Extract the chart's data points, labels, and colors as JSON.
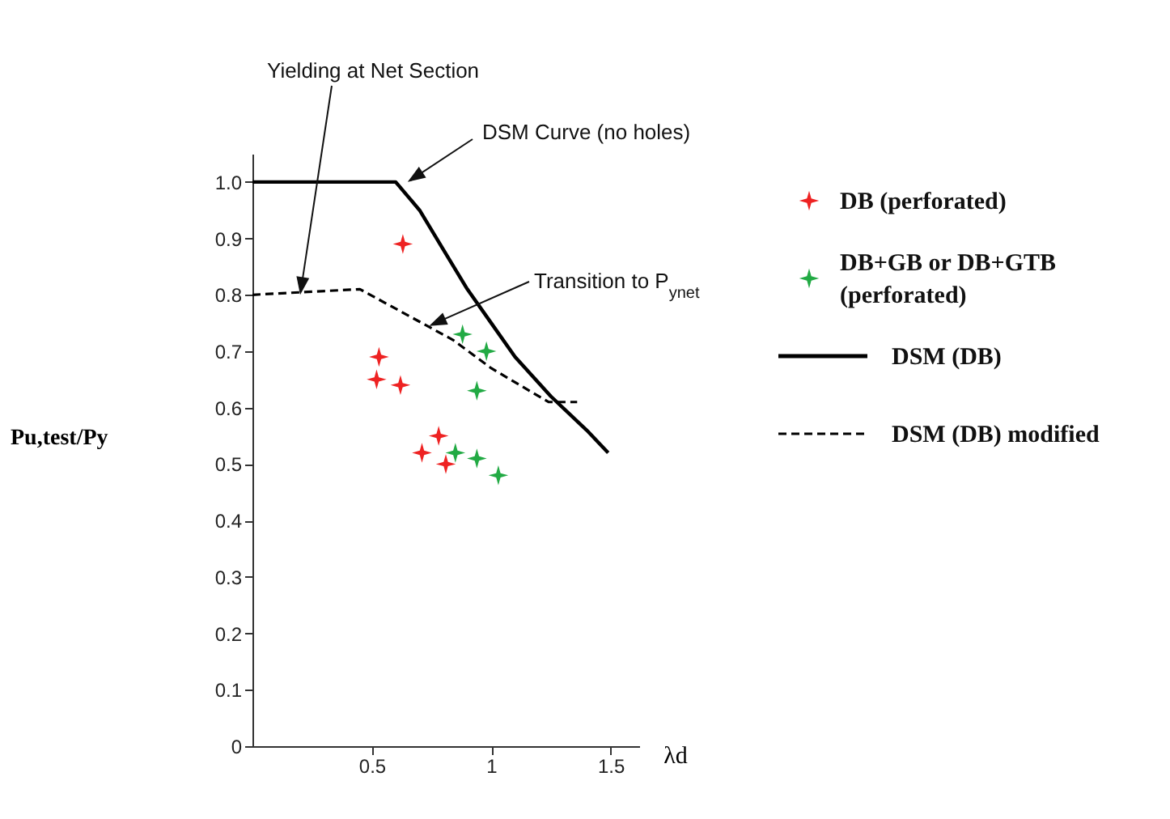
{
  "chart_data": {
    "type": "scatter",
    "xlabel": "λd",
    "ylabel": "Pu,test/Py",
    "xlim": [
      0,
      1.62
    ],
    "xticks": [
      0.5,
      1,
      1.5
    ],
    "ylim": [
      0,
      1.05
    ],
    "yticks": [
      0,
      0.1,
      0.2,
      0.3,
      0.4,
      0.5,
      0.6,
      0.7,
      0.8,
      0.9,
      {
        "value": 1,
        "label": "1.0"
      }
    ],
    "grid": false,
    "legend": "right",
    "series": [
      {
        "name": "DB (perforated)",
        "marker": "star",
        "color": "#ee2222",
        "x": [
          0.53,
          0.63,
          0.52,
          0.62,
          0.71,
          0.78,
          0.81
        ],
        "values": [
          0.69,
          0.89,
          0.65,
          0.64,
          0.52,
          0.55,
          0.5
        ]
      },
      {
        "name": "DB+GB or DB+GTB (perforated)",
        "marker": "star",
        "color": "#22aa44",
        "x": [
          0.88,
          0.98,
          0.94,
          0.85,
          0.94,
          1.03
        ],
        "values": [
          0.73,
          0.7,
          0.63,
          0.52,
          0.51,
          0.48
        ]
      },
      {
        "name": "DSM (DB)",
        "type": "line",
        "line_style": "solid",
        "color": "#000000",
        "x": [
          0,
          0.6,
          0.7,
          0.8,
          0.9,
          1.0,
          1.1,
          1.25,
          1.4,
          1.49
        ],
        "values": [
          1.0,
          1.0,
          0.95,
          0.88,
          0.81,
          0.75,
          0.69,
          0.62,
          0.56,
          0.52
        ]
      },
      {
        "name": "DSM (DB)  modified",
        "type": "line",
        "line_style": "dashed",
        "color": "#000000",
        "x": [
          0,
          0.45,
          0.84,
          1.0,
          1.24,
          1.36
        ],
        "values": [
          0.8,
          0.81,
          0.72,
          0.67,
          0.61,
          0.61
        ]
      }
    ],
    "annotations": [
      {
        "text": "Yielding at Net Section",
        "x": 0.2,
        "y": 0.8
      },
      {
        "text": "DSM Curve (no holes)",
        "x": 0.65,
        "y": 1.0
      },
      {
        "text": "Transition to P$_{ynet}$",
        "x": 0.74,
        "y": 0.745
      }
    ]
  }
}
